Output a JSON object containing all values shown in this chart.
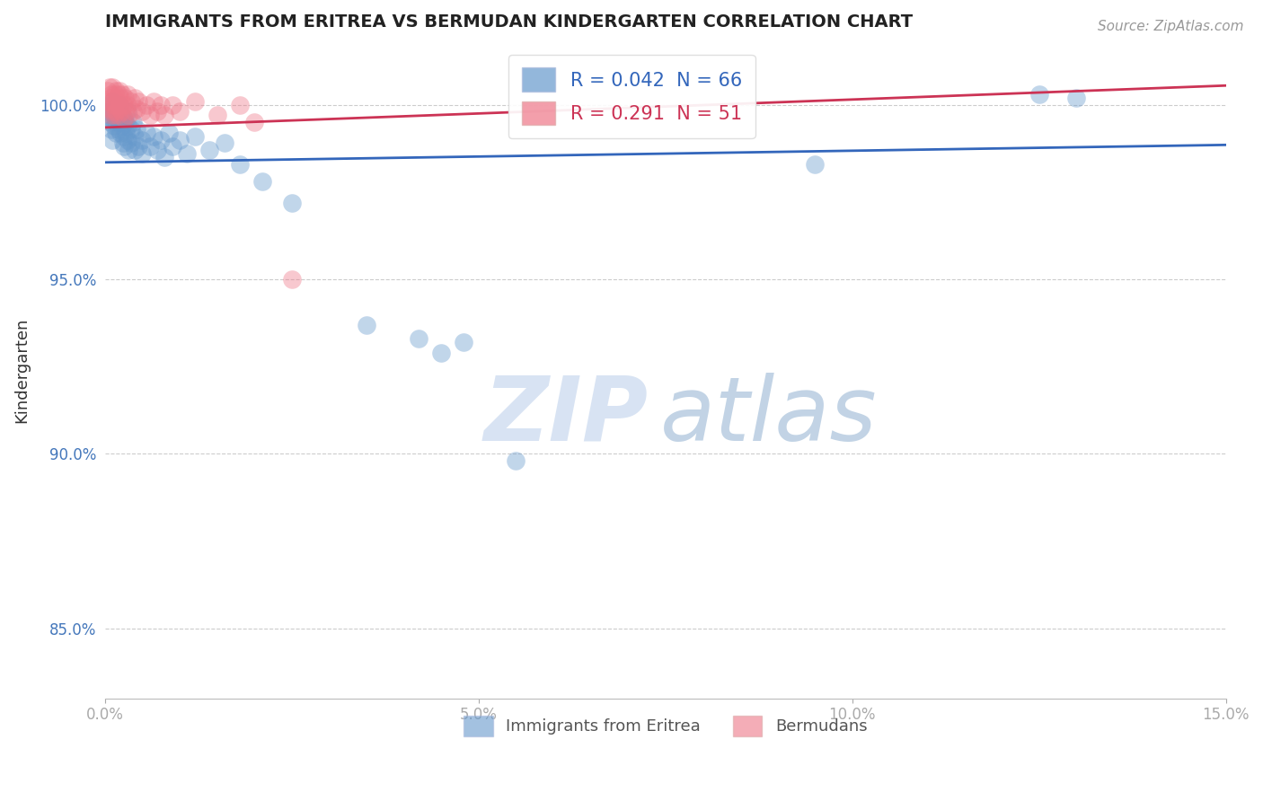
{
  "title": "IMMIGRANTS FROM ERITREA VS BERMUDAN KINDERGARTEN CORRELATION CHART",
  "source_text": "Source: ZipAtlas.com",
  "xlabel": "",
  "ylabel": "Kindergarten",
  "xlim": [
    0.0,
    15.0
  ],
  "ylim": [
    83.0,
    101.8
  ],
  "xticks": [
    0.0,
    5.0,
    10.0,
    15.0
  ],
  "xtick_labels": [
    "0.0%",
    "5.0%",
    "10.0%",
    "15.0%"
  ],
  "yticks": [
    85.0,
    90.0,
    95.0,
    100.0
  ],
  "ytick_labels": [
    "85.0%",
    "90.0%",
    "95.0%",
    "100.0%"
  ],
  "legend_blue_label": "Immigrants from Eritrea",
  "legend_pink_label": "Bermudans",
  "R_blue": 0.042,
  "N_blue": 66,
  "R_pink": 0.291,
  "N_pink": 51,
  "blue_color": "#6699cc",
  "pink_color": "#ee7788",
  "blue_line_color": "#3366bb",
  "pink_line_color": "#cc3355",
  "blue_line": [
    [
      0,
      98.35
    ],
    [
      15.0,
      98.85
    ]
  ],
  "pink_line": [
    [
      0,
      99.35
    ],
    [
      15.0,
      100.55
    ]
  ],
  "blue_scatter": [
    [
      0.05,
      99.8
    ],
    [
      0.06,
      100.0
    ],
    [
      0.07,
      99.5
    ],
    [
      0.08,
      99.7
    ],
    [
      0.09,
      99.3
    ],
    [
      0.1,
      100.1
    ],
    [
      0.1,
      99.6
    ],
    [
      0.1,
      99.0
    ],
    [
      0.11,
      99.8
    ],
    [
      0.12,
      99.4
    ],
    [
      0.13,
      100.0
    ],
    [
      0.14,
      99.7
    ],
    [
      0.15,
      99.5
    ],
    [
      0.15,
      99.2
    ],
    [
      0.16,
      99.9
    ],
    [
      0.17,
      99.6
    ],
    [
      0.18,
      99.3
    ],
    [
      0.19,
      99.8
    ],
    [
      0.2,
      100.0
    ],
    [
      0.2,
      99.5
    ],
    [
      0.21,
      99.2
    ],
    [
      0.22,
      99.7
    ],
    [
      0.23,
      99.4
    ],
    [
      0.24,
      98.9
    ],
    [
      0.25,
      99.6
    ],
    [
      0.25,
      99.1
    ],
    [
      0.26,
      98.8
    ],
    [
      0.27,
      99.5
    ],
    [
      0.28,
      99.2
    ],
    [
      0.3,
      99.8
    ],
    [
      0.3,
      99.4
    ],
    [
      0.3,
      99.0
    ],
    [
      0.32,
      98.7
    ],
    [
      0.35,
      99.3
    ],
    [
      0.35,
      98.9
    ],
    [
      0.38,
      99.5
    ],
    [
      0.4,
      99.1
    ],
    [
      0.4,
      98.7
    ],
    [
      0.42,
      99.3
    ],
    [
      0.45,
      98.8
    ],
    [
      0.5,
      99.0
    ],
    [
      0.5,
      98.6
    ],
    [
      0.55,
      99.2
    ],
    [
      0.6,
      98.8
    ],
    [
      0.65,
      99.1
    ],
    [
      0.7,
      98.7
    ],
    [
      0.75,
      99.0
    ],
    [
      0.8,
      98.5
    ],
    [
      0.85,
      99.2
    ],
    [
      0.9,
      98.8
    ],
    [
      1.0,
      99.0
    ],
    [
      1.1,
      98.6
    ],
    [
      1.2,
      99.1
    ],
    [
      1.4,
      98.7
    ],
    [
      1.6,
      98.9
    ],
    [
      1.8,
      98.3
    ],
    [
      2.1,
      97.8
    ],
    [
      2.5,
      97.2
    ],
    [
      3.5,
      93.7
    ],
    [
      4.2,
      93.3
    ],
    [
      4.5,
      92.9
    ],
    [
      4.8,
      93.2
    ],
    [
      5.5,
      89.8
    ],
    [
      9.5,
      98.3
    ],
    [
      12.5,
      100.3
    ],
    [
      13.0,
      100.2
    ]
  ],
  "pink_scatter": [
    [
      0.04,
      100.4
    ],
    [
      0.05,
      100.1
    ],
    [
      0.06,
      100.5
    ],
    [
      0.07,
      99.9
    ],
    [
      0.08,
      100.2
    ],
    [
      0.08,
      99.7
    ],
    [
      0.09,
      100.3
    ],
    [
      0.1,
      100.1
    ],
    [
      0.1,
      99.8
    ],
    [
      0.1,
      100.5
    ],
    [
      0.11,
      100.0
    ],
    [
      0.12,
      99.7
    ],
    [
      0.13,
      100.3
    ],
    [
      0.14,
      100.0
    ],
    [
      0.15,
      100.4
    ],
    [
      0.15,
      99.8
    ],
    [
      0.16,
      100.1
    ],
    [
      0.17,
      99.7
    ],
    [
      0.18,
      100.3
    ],
    [
      0.19,
      100.0
    ],
    [
      0.2,
      100.4
    ],
    [
      0.2,
      99.9
    ],
    [
      0.21,
      100.2
    ],
    [
      0.22,
      99.8
    ],
    [
      0.23,
      100.3
    ],
    [
      0.25,
      100.0
    ],
    [
      0.25,
      99.6
    ],
    [
      0.27,
      100.2
    ],
    [
      0.28,
      99.8
    ],
    [
      0.3,
      100.3
    ],
    [
      0.3,
      100.0
    ],
    [
      0.32,
      99.7
    ],
    [
      0.35,
      100.1
    ],
    [
      0.38,
      99.8
    ],
    [
      0.4,
      100.2
    ],
    [
      0.42,
      99.9
    ],
    [
      0.45,
      100.1
    ],
    [
      0.5,
      99.8
    ],
    [
      0.55,
      100.0
    ],
    [
      0.6,
      99.7
    ],
    [
      0.65,
      100.1
    ],
    [
      0.7,
      99.8
    ],
    [
      0.75,
      100.0
    ],
    [
      0.8,
      99.7
    ],
    [
      0.9,
      100.0
    ],
    [
      1.0,
      99.8
    ],
    [
      1.2,
      100.1
    ],
    [
      1.5,
      99.7
    ],
    [
      1.8,
      100.0
    ],
    [
      2.0,
      99.5
    ],
    [
      2.5,
      95.0
    ]
  ]
}
